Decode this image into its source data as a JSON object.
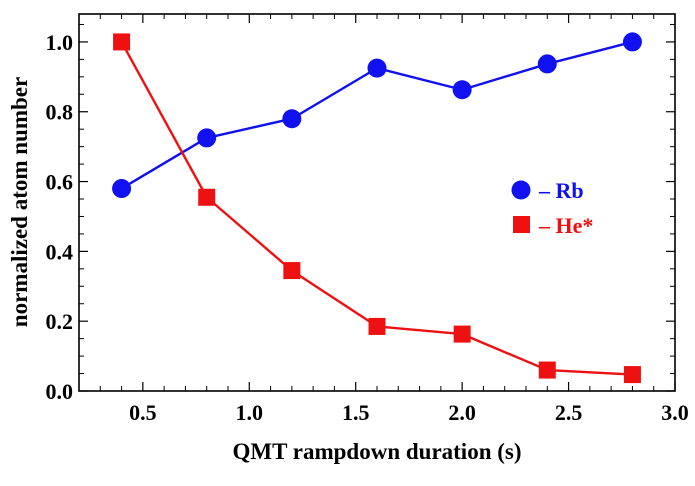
{
  "chart_data": {
    "type": "line",
    "title": "",
    "xlabel": "QMT rampdown duration (s)",
    "ylabel": "normalized atom number",
    "xlim": [
      0.2,
      3.0
    ],
    "ylim": [
      0.0,
      1.08
    ],
    "xticks": [
      0.5,
      1.0,
      1.5,
      2.0,
      2.5,
      3.0
    ],
    "xtick_labels": [
      "0.5",
      "1.0",
      "1.5",
      "2.0",
      "2.5",
      "3.0"
    ],
    "yticks": [
      0.0,
      0.2,
      0.4,
      0.6,
      0.8,
      1.0
    ],
    "ytick_labels": [
      "0.0",
      "0.2",
      "0.4",
      "0.6",
      "0.8",
      "1.0"
    ],
    "grid": false,
    "legend_position": "right",
    "series": [
      {
        "name": "Rb",
        "legend_label": "– Rb",
        "marker": "circle",
        "color": "#1010f0",
        "x": [
          0.4,
          0.8,
          1.2,
          1.6,
          2.0,
          2.4,
          2.8
        ],
        "y": [
          0.58,
          0.725,
          0.78,
          0.925,
          0.863,
          0.937,
          1.0
        ]
      },
      {
        "name": "He*",
        "legend_label": "– He*",
        "marker": "square",
        "color": "#ee1111",
        "x": [
          0.4,
          0.8,
          1.2,
          1.6,
          2.0,
          2.4,
          2.8
        ],
        "y": [
          1.0,
          0.555,
          0.345,
          0.185,
          0.163,
          0.06,
          0.047
        ]
      }
    ]
  }
}
